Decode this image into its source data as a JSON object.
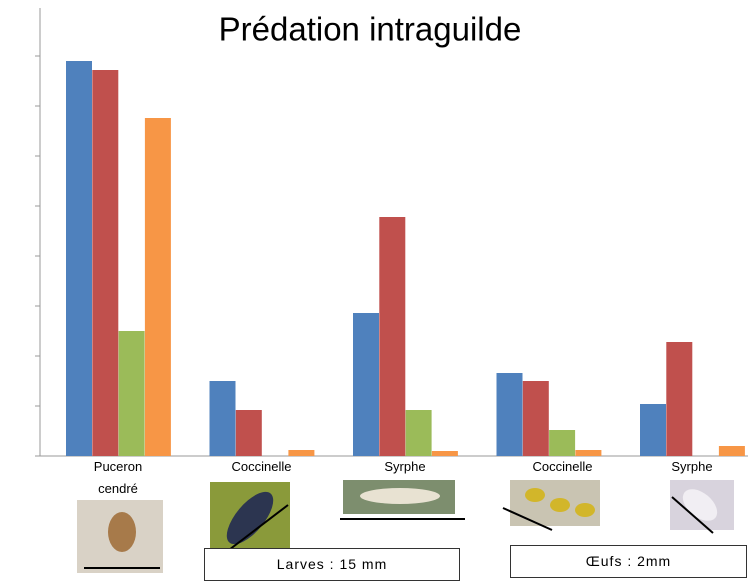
{
  "chart_data": {
    "type": "bar",
    "title": "Prédation intraguilde",
    "categories": [
      "Puceron cendré",
      "Coccinelle",
      "Syrphe",
      "Coccinelle",
      "Syrphe"
    ],
    "series": [
      {
        "color": "#4f81bd",
        "values": [
          7.9,
          1.5,
          2.86,
          1.66,
          1.04
        ]
      },
      {
        "color": "#c0504d",
        "values": [
          7.72,
          0.92,
          4.78,
          1.5,
          2.28
        ]
      },
      {
        "color": "#9bbb59",
        "values": [
          2.5,
          0,
          0.92,
          0.52,
          0
        ]
      },
      {
        "color": "#f79646",
        "values": [
          6.76,
          0.12,
          0.1,
          0.12,
          0.2
        ]
      }
    ],
    "ylim": [
      0,
      8.96
    ],
    "yticks": [
      0,
      1,
      2,
      3,
      4,
      5,
      6,
      7,
      8
    ],
    "annotations": [
      "Larves : 15 mm",
      "Œufs : 2mm"
    ]
  }
}
